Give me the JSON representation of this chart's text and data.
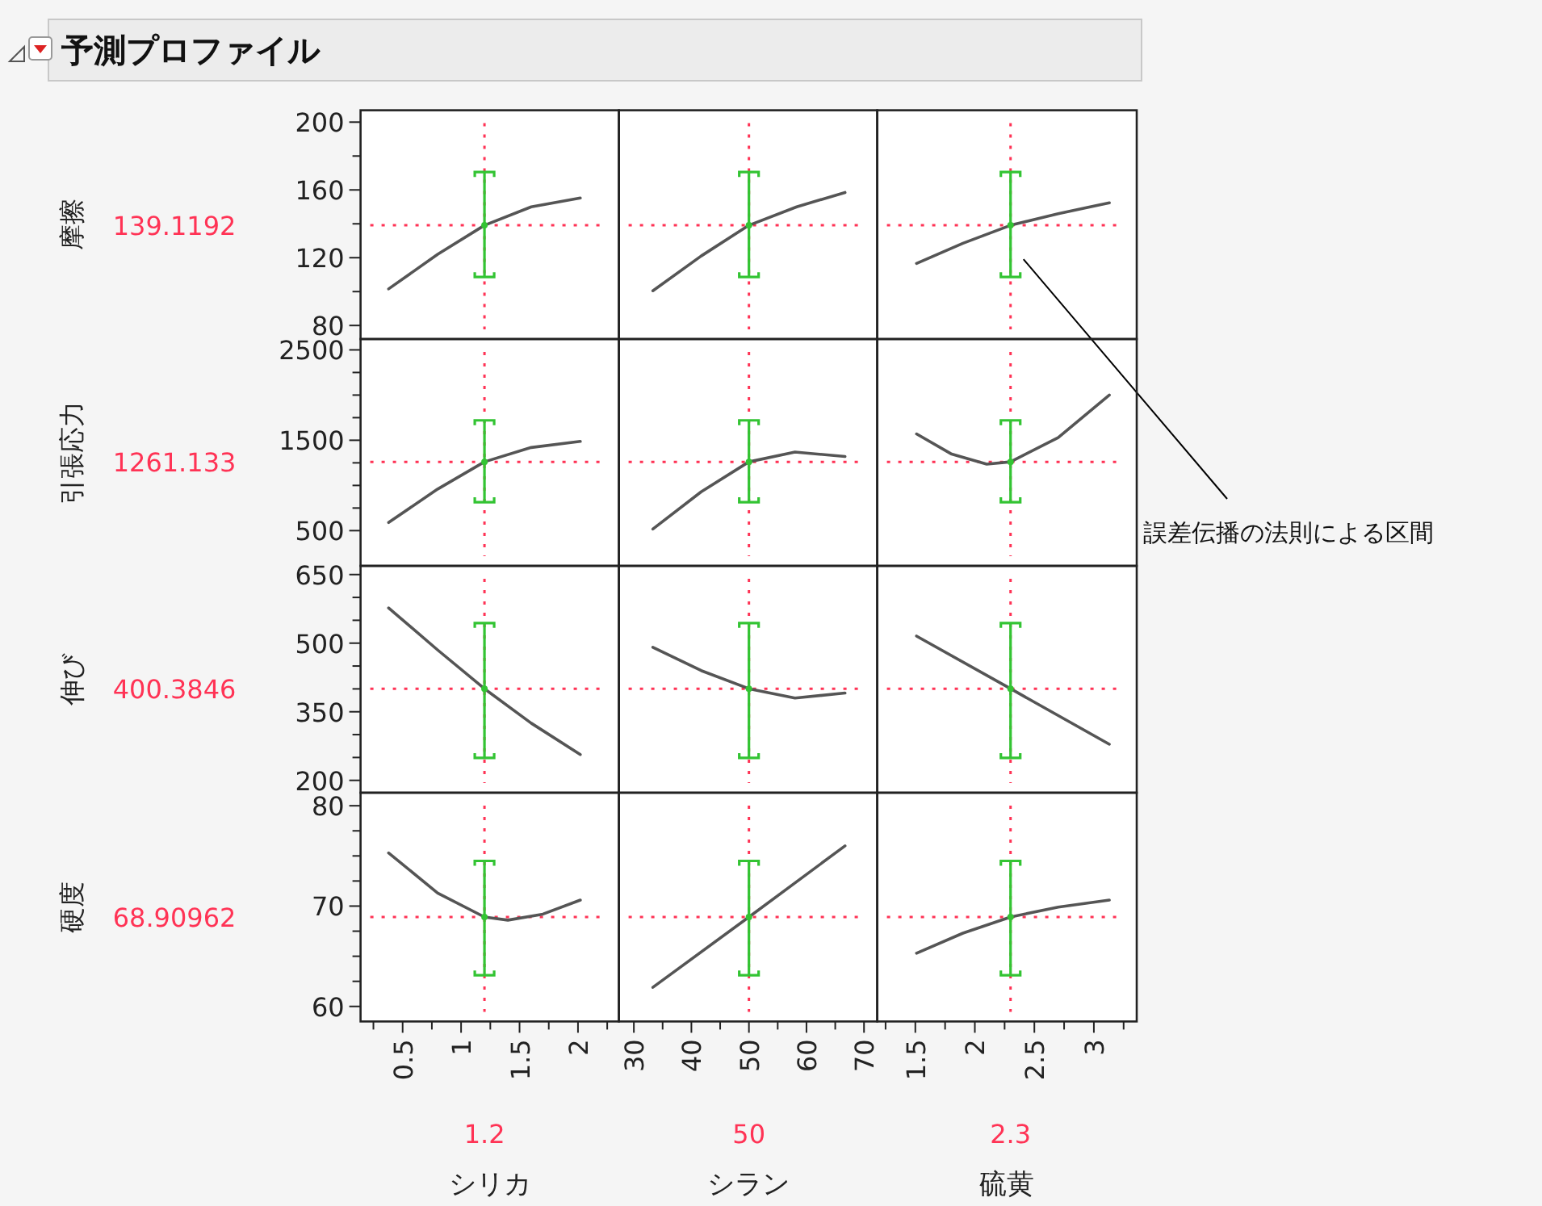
{
  "chart_data": [
    {
      "type": "line",
      "title": "予測プロファイル",
      "ylabel": "摩擦",
      "xlim": [
        0.14,
        2.35
      ],
      "ylim": [
        72,
        207
      ],
      "yticks": [
        80,
        {
          "value": 100,
          "label": null
        },
        120,
        {
          "value": 140,
          "label": null
        },
        160,
        {
          "value": 180,
          "label": null
        },
        200
      ],
      "tick_labels": "y",
      "series": [
        {
          "type": "line",
          "color": "#555555",
          "x": [
            0.38,
            0.8,
            1.2,
            1.6,
            2.02
          ],
          "values": [
            101.6,
            122,
            139.1192,
            150,
            155.2
          ]
        },
        {
          "type": "scatter",
          "color": "#33c433",
          "x": [
            1.2
          ],
          "values": [
            139.1192
          ],
          "errors": [
            [
              108.6,
              170.5
            ]
          ]
        }
      ],
      "ref_lines": [
        {
          "axis": "x",
          "value": 1.2,
          "color": "#ff3355",
          "line_style": "dotted"
        },
        {
          "axis": "y",
          "value": 139.1192,
          "label": "139.1192",
          "color": "#ff3355",
          "line_style": "dotted"
        }
      ]
    },
    {
      "type": "line",
      "xlim": [
        27.4,
        72.3
      ],
      "ylim": [
        72,
        207
      ],
      "tick_labels": false,
      "series": [
        {
          "type": "line",
          "color": "#555555",
          "x": [
            33.3,
            41.7,
            50,
            58.3,
            66.7
          ],
          "values": [
            100.5,
            121,
            139.1192,
            150,
            158.5
          ]
        },
        {
          "type": "scatter",
          "color": "#33c433",
          "x": [
            50
          ],
          "values": [
            139.1192
          ],
          "errors": [
            [
              108.6,
              170.5
            ]
          ]
        }
      ],
      "ref_lines": [
        {
          "axis": "x",
          "value": 50,
          "color": "#ff3355",
          "line_style": "dotted"
        },
        {
          "axis": "y",
          "value": 139.1192,
          "color": "#ff3355",
          "line_style": "dotted"
        }
      ]
    },
    {
      "type": "line",
      "xlim": [
        1.18,
        3.36
      ],
      "ylim": [
        72,
        207
      ],
      "tick_labels": false,
      "series": [
        {
          "type": "line",
          "color": "#555555",
          "x": [
            1.51,
            1.9,
            2.3,
            2.7,
            3.13
          ],
          "values": [
            116.6,
            128.5,
            139.1192,
            146,
            152.4
          ]
        },
        {
          "type": "scatter",
          "color": "#33c433",
          "x": [
            2.3
          ],
          "values": [
            139.1192
          ],
          "errors": [
            [
              108.6,
              170.5
            ]
          ]
        }
      ],
      "ref_lines": [
        {
          "axis": "x",
          "value": 2.3,
          "color": "#ff3355",
          "line_style": "dotted"
        },
        {
          "axis": "y",
          "value": 139.1192,
          "color": "#ff3355",
          "line_style": "dotted"
        }
      ],
      "annotations": [
        "誤差伝播の法則による区間"
      ]
    },
    {
      "type": "line",
      "ylabel": "引張応力",
      "xlim": [
        0.14,
        2.35
      ],
      "ylim": [
        110,
        2620
      ],
      "yticks": [
        500,
        {
          "value": 750,
          "label": null
        },
        {
          "value": 1000,
          "label": null
        },
        {
          "value": 1250,
          "label": null
        },
        1500,
        {
          "value": 1750,
          "label": null
        },
        {
          "value": 2000,
          "label": null
        },
        {
          "value": 2250,
          "label": null
        },
        2500
      ],
      "tick_labels": "y",
      "series": [
        {
          "type": "line",
          "color": "#555555",
          "x": [
            0.38,
            0.8,
            1.2,
            1.6,
            2.02
          ],
          "values": [
            590,
            960,
            1261.133,
            1420,
            1488
          ]
        },
        {
          "type": "scatter",
          "color": "#33c433",
          "x": [
            1.2
          ],
          "values": [
            1261.133
          ],
          "errors": [
            [
              815,
              1720
            ]
          ]
        }
      ],
      "ref_lines": [
        {
          "axis": "x",
          "value": 1.2,
          "color": "#ff3355",
          "line_style": "dotted"
        },
        {
          "axis": "y",
          "value": 1261.133,
          "label": "1261.133",
          "color": "#ff3355",
          "line_style": "dotted"
        }
      ]
    },
    {
      "type": "line",
      "xlim": [
        27.4,
        72.3
      ],
      "ylim": [
        110,
        2620
      ],
      "tick_labels": false,
      "series": [
        {
          "type": "line",
          "color": "#555555",
          "x": [
            33.3,
            41.7,
            50,
            58,
            66.7
          ],
          "values": [
            518,
            930,
            1261.133,
            1370,
            1320
          ]
        },
        {
          "type": "scatter",
          "color": "#33c433",
          "x": [
            50
          ],
          "values": [
            1261.133
          ],
          "errors": [
            [
              815,
              1720
            ]
          ]
        }
      ],
      "ref_lines": [
        {
          "axis": "x",
          "value": 50,
          "color": "#ff3355",
          "line_style": "dotted"
        },
        {
          "axis": "y",
          "value": 1261.133,
          "color": "#ff3355",
          "line_style": "dotted"
        }
      ]
    },
    {
      "type": "line",
      "xlim": [
        1.18,
        3.36
      ],
      "ylim": [
        110,
        2620
      ],
      "tick_labels": false,
      "series": [
        {
          "type": "line",
          "color": "#555555",
          "x": [
            1.51,
            1.8,
            2.1,
            2.3,
            2.7,
            3.13
          ],
          "values": [
            1570,
            1350,
            1235,
            1261.133,
            1530,
            2000
          ]
        },
        {
          "type": "scatter",
          "color": "#33c433",
          "x": [
            2.3
          ],
          "values": [
            1261.133
          ],
          "errors": [
            [
              815,
              1720
            ]
          ]
        }
      ],
      "ref_lines": [
        {
          "axis": "x",
          "value": 2.3,
          "color": "#ff3355",
          "line_style": "dotted"
        },
        {
          "axis": "y",
          "value": 1261.133,
          "color": "#ff3355",
          "line_style": "dotted"
        }
      ]
    },
    {
      "type": "line",
      "ylabel": "伸び",
      "xlim": [
        0.14,
        2.35
      ],
      "ylim": [
        173,
        669
      ],
      "yticks": [
        200,
        {
          "value": 250,
          "label": null
        },
        {
          "value": 300,
          "label": null
        },
        350,
        {
          "value": 400,
          "label": null
        },
        {
          "value": 450,
          "label": null
        },
        500,
        {
          "value": 550,
          "label": null
        },
        {
          "value": 600,
          "label": null
        },
        650
      ],
      "tick_labels": "y",
      "series": [
        {
          "type": "line",
          "color": "#555555",
          "x": [
            0.38,
            0.8,
            1.2,
            1.6,
            2.02
          ],
          "values": [
            577,
            485,
            400.3846,
            325,
            256.5
          ]
        },
        {
          "type": "scatter",
          "color": "#33c433",
          "x": [
            1.2
          ],
          "values": [
            400.3846
          ],
          "errors": [
            [
              249,
              544
            ]
          ]
        }
      ],
      "ref_lines": [
        {
          "axis": "x",
          "value": 1.2,
          "color": "#ff3355",
          "line_style": "dotted"
        },
        {
          "axis": "y",
          "value": 400.3846,
          "label": "400.3846",
          "color": "#ff3355",
          "line_style": "dotted"
        }
      ]
    },
    {
      "type": "line",
      "xlim": [
        27.4,
        72.3
      ],
      "ylim": [
        173,
        669
      ],
      "tick_labels": false,
      "series": [
        {
          "type": "line",
          "color": "#555555",
          "x": [
            33.3,
            41.7,
            50,
            58,
            66.7
          ],
          "values": [
            491,
            440,
            400.3846,
            380,
            391
          ]
        },
        {
          "type": "scatter",
          "color": "#33c433",
          "x": [
            50
          ],
          "values": [
            400.3846
          ],
          "errors": [
            [
              249,
              544
            ]
          ]
        }
      ],
      "ref_lines": [
        {
          "axis": "x",
          "value": 50,
          "color": "#ff3355",
          "line_style": "dotted"
        },
        {
          "axis": "y",
          "value": 400.3846,
          "color": "#ff3355",
          "line_style": "dotted"
        }
      ]
    },
    {
      "type": "line",
      "xlim": [
        1.18,
        3.36
      ],
      "ylim": [
        173,
        669
      ],
      "tick_labels": false,
      "series": [
        {
          "type": "line",
          "color": "#555555",
          "x": [
            1.51,
            2.3,
            3.13
          ],
          "values": [
            515.5,
            400.3846,
            279
          ]
        },
        {
          "type": "scatter",
          "color": "#33c433",
          "x": [
            2.3
          ],
          "values": [
            400.3846
          ],
          "errors": [
            [
              249,
              544
            ]
          ]
        }
      ],
      "ref_lines": [
        {
          "axis": "x",
          "value": 2.3,
          "color": "#ff3355",
          "line_style": "dotted"
        },
        {
          "axis": "y",
          "value": 400.3846,
          "color": "#ff3355",
          "line_style": "dotted"
        }
      ]
    },
    {
      "type": "line",
      "ylabel": "硬度",
      "xlabel": "シリカ",
      "xlim": [
        0.14,
        2.35
      ],
      "ylim": [
        58.5,
        81.3
      ],
      "xticks": [
        {
          "value": 0.25,
          "label": null
        },
        0.5,
        {
          "value": 0.75,
          "label": null
        },
        1,
        {
          "value": 1.25,
          "label": null
        },
        1.5,
        {
          "value": 1.75,
          "label": null
        },
        2,
        {
          "value": 2.25,
          "label": null
        }
      ],
      "yticks": [
        60,
        {
          "value": 62.5,
          "label": null
        },
        {
          "value": 65,
          "label": null
        },
        {
          "value": 67.5,
          "label": null
        },
        70,
        {
          "value": 72.5,
          "label": null
        },
        {
          "value": 75,
          "label": null
        },
        {
          "value": 77.5,
          "label": null
        },
        80
      ],
      "series": [
        {
          "type": "line",
          "color": "#555555",
          "x": [
            0.38,
            0.8,
            1.2,
            1.4,
            1.7,
            2.02
          ],
          "values": [
            75.3,
            71.3,
            68.90962,
            68.6,
            69.2,
            70.6
          ]
        },
        {
          "type": "scatter",
          "color": "#33c433",
          "x": [
            1.2
          ],
          "values": [
            68.90962
          ],
          "errors": [
            [
              63.1,
              74.5
            ]
          ]
        }
      ],
      "ref_lines": [
        {
          "axis": "x",
          "value": 1.2,
          "label": "1.2",
          "color": "#ff3355",
          "line_style": "dotted"
        },
        {
          "axis": "y",
          "value": 68.90962,
          "label": "68.90962",
          "color": "#ff3355",
          "line_style": "dotted"
        }
      ]
    },
    {
      "type": "line",
      "xlabel": "シラン",
      "xlim": [
        27.4,
        72.3
      ],
      "ylim": [
        58.5,
        81.3
      ],
      "xticks": [
        30,
        {
          "value": 35,
          "label": null
        },
        40,
        {
          "value": 45,
          "label": null
        },
        50,
        {
          "value": 55,
          "label": null
        },
        60,
        {
          "value": 65,
          "label": null
        },
        70
      ],
      "tick_labels": "x",
      "series": [
        {
          "type": "line",
          "color": "#555555",
          "x": [
            33.3,
            50,
            66.7
          ],
          "values": [
            61.9,
            68.90962,
            76.0
          ]
        },
        {
          "type": "scatter",
          "color": "#33c433",
          "x": [
            50
          ],
          "values": [
            68.90962
          ],
          "errors": [
            [
              63.1,
              74.5
            ]
          ]
        }
      ],
      "ref_lines": [
        {
          "axis": "x",
          "value": 50,
          "label": "50",
          "color": "#ff3355",
          "line_style": "dotted"
        },
        {
          "axis": "y",
          "value": 68.90962,
          "color": "#ff3355",
          "line_style": "dotted"
        }
      ]
    },
    {
      "type": "line",
      "xlabel": "硫黄",
      "xlim": [
        1.18,
        3.36
      ],
      "ylim": [
        58.5,
        81.3
      ],
      "xticks": [
        {
          "value": 1.25,
          "label": null
        },
        1.5,
        {
          "value": 1.75,
          "label": null
        },
        2,
        {
          "value": 2.25,
          "label": null
        },
        2.5,
        {
          "value": 2.75,
          "label": null
        },
        3,
        {
          "value": 3.25,
          "label": null
        }
      ],
      "tick_labels": "x",
      "series": [
        {
          "type": "line",
          "color": "#555555",
          "x": [
            1.51,
            1.9,
            2.3,
            2.7,
            3.13
          ],
          "values": [
            65.3,
            67.3,
            68.90962,
            69.9,
            70.6
          ]
        },
        {
          "type": "scatter",
          "color": "#33c433",
          "x": [
            2.3
          ],
          "values": [
            68.90962
          ],
          "errors": [
            [
              63.1,
              74.5
            ]
          ]
        }
      ],
      "ref_lines": [
        {
          "axis": "x",
          "value": 2.3,
          "label": "2.3",
          "color": "#ff3355",
          "line_style": "dotted"
        },
        {
          "axis": "y",
          "value": 68.90962,
          "color": "#ff3355",
          "line_style": "dotted"
        }
      ]
    }
  ]
}
